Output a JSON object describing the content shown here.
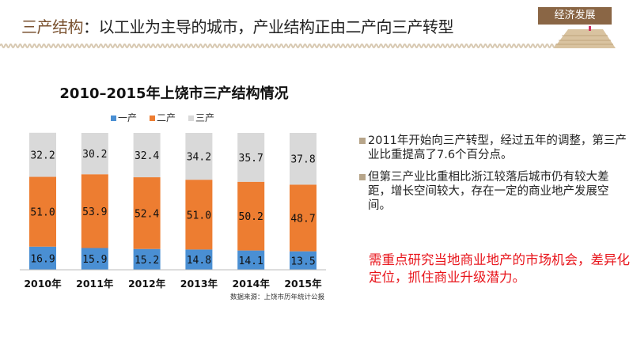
{
  "header": {
    "title_highlight": "三产结构",
    "title_rest": "：以工业为主导的城市，产业结构正由二产向三产转型",
    "badge": "经济发展"
  },
  "chart_data": {
    "type": "bar",
    "stacked": true,
    "title": "2010–2015年上饶市三产结构情况",
    "categories": [
      "2010年",
      "2011年",
      "2012年",
      "2013年",
      "2014年",
      "2015年"
    ],
    "series": [
      {
        "name": "一产",
        "color": "#4a8fd3",
        "values": [
          16.9,
          15.9,
          15.2,
          14.8,
          14.1,
          13.5
        ]
      },
      {
        "name": "二产",
        "color": "#ed7d31",
        "values": [
          51.0,
          53.9,
          52.4,
          51.0,
          50.2,
          48.7
        ]
      },
      {
        "name": "三产",
        "color": "#d9d9d9",
        "values": [
          32.2,
          30.2,
          32.4,
          34.2,
          35.7,
          37.8
        ]
      }
    ],
    "ylim": [
      0,
      100
    ],
    "grid": false,
    "legend": "top",
    "source": "数据来源：上饶市历年统计公报"
  },
  "bullets": [
    "2011年开始向三产转型，经过五年的调整，第三产业比重提高了7.6个百分点。",
    "但第三产业比重相比浙江较落后城市仍有较大差距，增长空间较大，存在一定的商业地产发展空间。"
  ],
  "conclusion": "需重点研究当地商业地产的市场机会，差异化定位，抓住商业升级潜力。"
}
